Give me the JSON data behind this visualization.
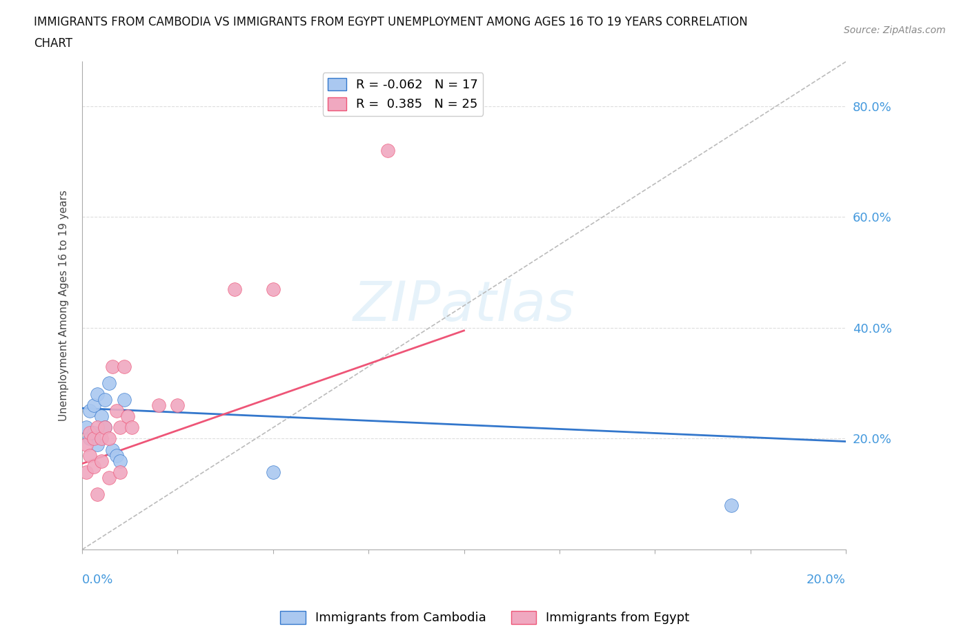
{
  "title_line1": "IMMIGRANTS FROM CAMBODIA VS IMMIGRANTS FROM EGYPT UNEMPLOYMENT AMONG AGES 16 TO 19 YEARS CORRELATION",
  "title_line2": "CHART",
  "source": "Source: ZipAtlas.com",
  "ylabel": "Unemployment Among Ages 16 to 19 years",
  "right_yticks": [
    0.2,
    0.4,
    0.6,
    0.8
  ],
  "right_yticklabels": [
    "20.0%",
    "40.0%",
    "60.0%",
    "80.0%"
  ],
  "xlim": [
    0.0,
    0.2
  ],
  "ylim": [
    0.0,
    0.88
  ],
  "legend_cambodia_R": "-0.062",
  "legend_cambodia_N": "17",
  "legend_egypt_R": "0.385",
  "legend_egypt_N": "25",
  "cambodia_color": "#aac8f0",
  "egypt_color": "#f0a8c0",
  "cambodia_line_color": "#3377cc",
  "egypt_line_color": "#ee5577",
  "diag_line_color": "#bbbbbb",
  "cambodia_x": [
    0.001,
    0.002,
    0.002,
    0.003,
    0.003,
    0.004,
    0.004,
    0.005,
    0.006,
    0.006,
    0.007,
    0.008,
    0.009,
    0.01,
    0.011,
    0.05,
    0.17
  ],
  "cambodia_y": [
    0.22,
    0.2,
    0.25,
    0.26,
    0.21,
    0.28,
    0.19,
    0.24,
    0.22,
    0.27,
    0.3,
    0.18,
    0.17,
    0.16,
    0.27,
    0.14,
    0.08
  ],
  "egypt_x": [
    0.001,
    0.001,
    0.002,
    0.002,
    0.003,
    0.003,
    0.004,
    0.004,
    0.005,
    0.005,
    0.006,
    0.007,
    0.007,
    0.008,
    0.009,
    0.01,
    0.01,
    0.011,
    0.012,
    0.013,
    0.02,
    0.025,
    0.04,
    0.05,
    0.08
  ],
  "egypt_y": [
    0.14,
    0.19,
    0.17,
    0.21,
    0.15,
    0.2,
    0.1,
    0.22,
    0.16,
    0.2,
    0.22,
    0.13,
    0.2,
    0.33,
    0.25,
    0.22,
    0.14,
    0.33,
    0.24,
    0.22,
    0.26,
    0.26,
    0.47,
    0.47,
    0.72
  ],
  "cam_trend_x": [
    0.0,
    0.2
  ],
  "cam_trend_y": [
    0.255,
    0.195
  ],
  "egy_trend_x": [
    0.0,
    0.1
  ],
  "egy_trend_y": [
    0.155,
    0.395
  ]
}
